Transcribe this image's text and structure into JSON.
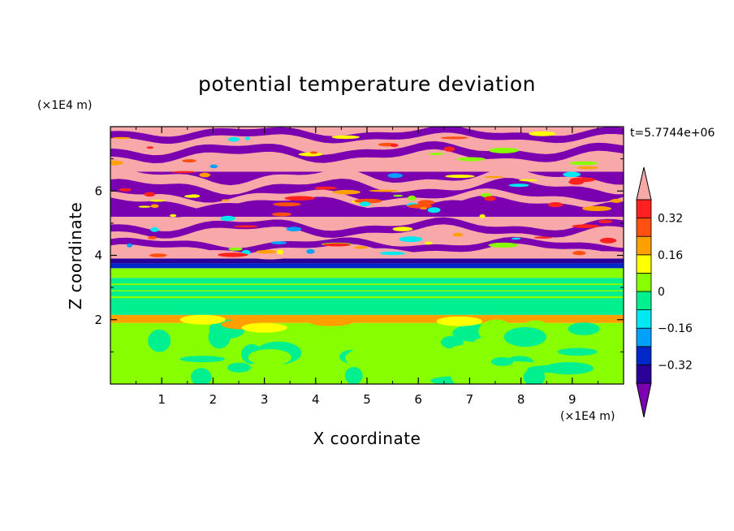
{
  "chart_data": {
    "type": "heatmap",
    "title": "potential temperature deviation",
    "xlabel": "X coordinate",
    "ylabel": "Z coordinate",
    "x_unit": "(×1E4 m)",
    "y_unit": "(×1E4 m)",
    "time_label": "t=5.7744e+06",
    "xlim": [
      0,
      10
    ],
    "ylim": [
      0,
      8
    ],
    "x_ticks": [
      1,
      2,
      3,
      4,
      5,
      6,
      7,
      8,
      9
    ],
    "y_ticks": [
      2,
      4,
      6
    ],
    "x_tick_labels": [
      "1",
      "2",
      "3",
      "4",
      "5",
      "6",
      "7",
      "8",
      "9"
    ],
    "y_tick_labels": [
      "2",
      "4",
      "6"
    ],
    "grid": false,
    "colorbar": {
      "levels": [
        -0.4,
        -0.32,
        -0.24,
        -0.16,
        -0.08,
        0,
        0.08,
        0.16,
        0.24,
        0.32,
        0.4
      ],
      "labeled_levels": [
        0.32,
        0.16,
        0,
        -0.16,
        -0.32
      ],
      "labels": [
        "0.32",
        "0.16",
        "0",
        "−0.16",
        "−0.32"
      ],
      "colors": [
        "#7a00b0",
        "#2a0098",
        "#0028c8",
        "#00a0ff",
        "#00e8f0",
        "#00f090",
        "#88ff00",
        "#ffff00",
        "#ffa000",
        "#ff5010",
        "#ff2020",
        "#f8a8a8"
      ],
      "extend": "both"
    },
    "bands": [
      {
        "z": [
          0.0,
          1.9
        ],
        "value": 0.04
      },
      {
        "z": [
          1.9,
          2.15
        ],
        "value": 0.2
      },
      {
        "z": [
          2.15,
          2.6
        ],
        "value": -0.02
      },
      {
        "z": [
          2.6,
          3.3
        ],
        "value": -0.04
      },
      {
        "z": [
          3.3,
          3.6
        ],
        "value": 0.02
      },
      {
        "z": [
          3.6,
          3.75
        ],
        "value": -0.3
      },
      {
        "z": [
          3.75,
          3.9
        ],
        "value": -0.36
      },
      {
        "z": [
          3.9,
          5.2
        ],
        "value": 0.42
      },
      {
        "z": [
          5.2,
          6.6
        ],
        "value": -0.45
      },
      {
        "z": [
          6.6,
          8.0
        ],
        "value": 0.44
      }
    ]
  }
}
